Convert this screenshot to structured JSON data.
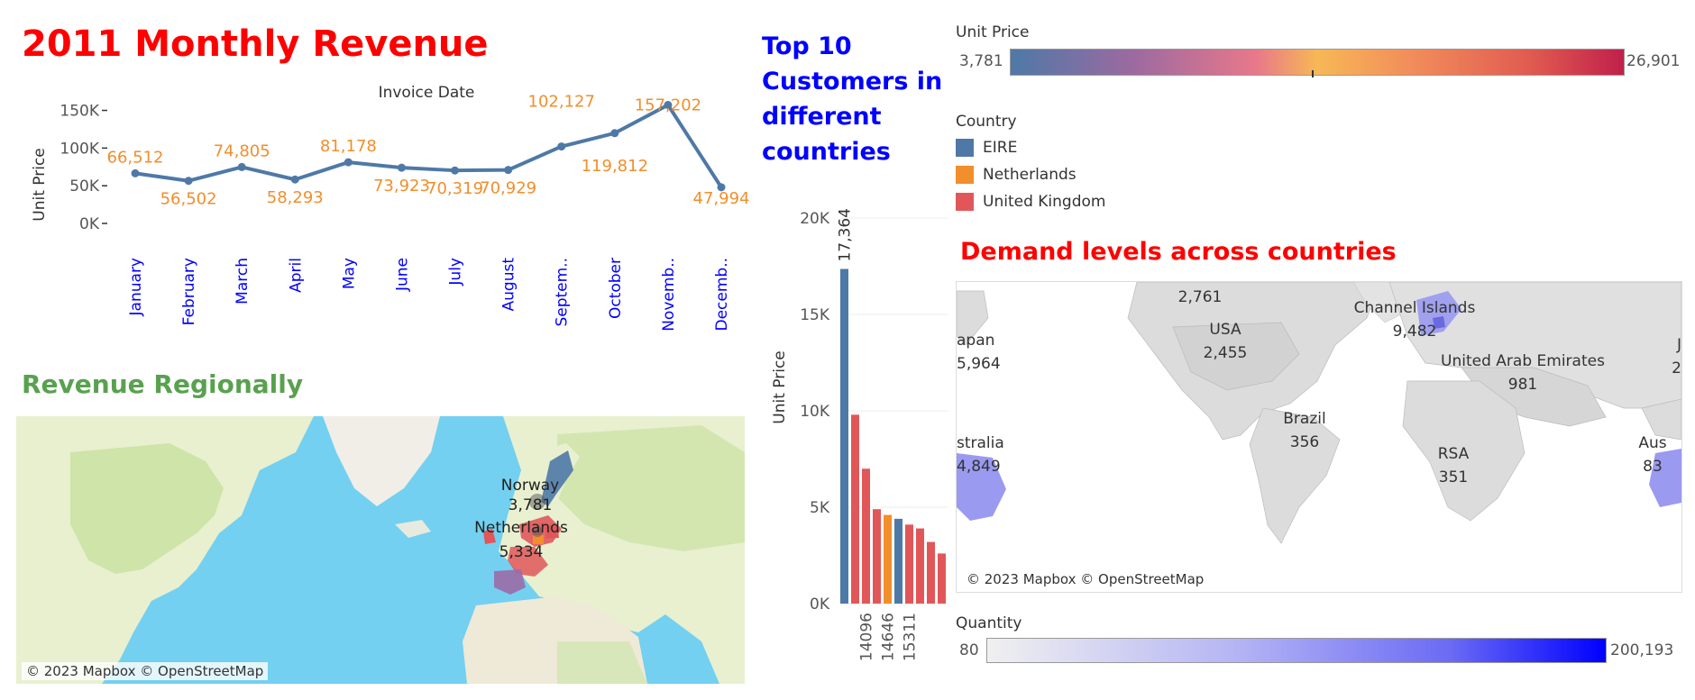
{
  "line_chart_title": "2011 Monthly Revenue",
  "regional_title": "Revenue Regionally",
  "customers_title": [
    "Top 10",
    "Customers in",
    "different",
    "countries"
  ],
  "demand_title": "Demand levels across countries",
  "map_credit": "© 2023 Mapbox © OpenStreetMap",
  "unit_price_legend": {
    "title": "Unit Price",
    "min": "3,781",
    "max": "26,901"
  },
  "country_legend": {
    "title": "Country",
    "items": [
      {
        "label": "EIRE",
        "color": "#4e79a7"
      },
      {
        "label": "Netherlands",
        "color": "#f28e2b"
      },
      {
        "label": "United Kingdom",
        "color": "#e15759"
      }
    ]
  },
  "quantity_legend": {
    "title": "Quantity",
    "min": "80",
    "max": "200,193"
  },
  "regional_map_labels": [
    {
      "name": "Norway",
      "value": "3,781"
    },
    {
      "name": "Netherlands",
      "value": "5,334"
    }
  ],
  "demand_map_labels": [
    {
      "name": "",
      "value": "2,761"
    },
    {
      "name": "USA",
      "value": "2,455"
    },
    {
      "name": "apan",
      "value": "5,964"
    },
    {
      "name": "Channel Islands",
      "value": "9,482"
    },
    {
      "name": "United Arab Emirates",
      "value": "981"
    },
    {
      "name": "Brazil",
      "value": "356"
    },
    {
      "name": "RSA",
      "value": "351"
    },
    {
      "name": "stralia",
      "value": "4,849"
    },
    {
      "name": "Aus",
      "value": "83"
    },
    {
      "name": "J",
      "value": "2"
    }
  ],
  "chart_data": [
    {
      "type": "line",
      "title": "2011 Monthly Revenue",
      "xlabel": "Invoice Date",
      "ylabel": "Unit Price",
      "categories": [
        "January",
        "February",
        "March",
        "April",
        "May",
        "June",
        "July",
        "August",
        "Septem..",
        "October",
        "Novemb..",
        "Decemb.."
      ],
      "values": [
        66512,
        56502,
        74805,
        58293,
        81178,
        73923,
        70319,
        70929,
        102127,
        119812,
        157202,
        47994
      ],
      "value_labels": [
        "66,512",
        "56,502",
        "74,805",
        "58,293",
        "81,178",
        "73,923",
        "70,319",
        "70,929",
        "102,127",
        "119,812",
        "157,202",
        "47,994"
      ],
      "yticks": [
        0,
        50000,
        100000,
        150000
      ],
      "ytick_labels": [
        "0K",
        "50K",
        "100K",
        "150K"
      ],
      "ylim": [
        0,
        165000
      ],
      "line_color": "#4e79a7",
      "label_color": "#f28e2b",
      "tick_color": "#0000ff"
    },
    {
      "type": "bar",
      "ylabel": "Unit Price",
      "categories": [
        "",
        "",
        "14096",
        "",
        "14646",
        "",
        "15311",
        "",
        "",
        ""
      ],
      "values": [
        17364,
        9800,
        7000,
        4900,
        4600,
        4400,
        4100,
        3900,
        3200,
        2600
      ],
      "colors": [
        "#4e79a7",
        "#e15759",
        "#e15759",
        "#e15759",
        "#f28e2b",
        "#4e79a7",
        "#e15759",
        "#e15759",
        "#e15759",
        "#e15759"
      ],
      "top_label": "17,364",
      "yticks": [
        0,
        5000,
        10000,
        15000,
        20000
      ],
      "ytick_labels": [
        "0K",
        "5K",
        "10K",
        "15K",
        "20K"
      ],
      "ylim": [
        0,
        20800
      ]
    }
  ]
}
